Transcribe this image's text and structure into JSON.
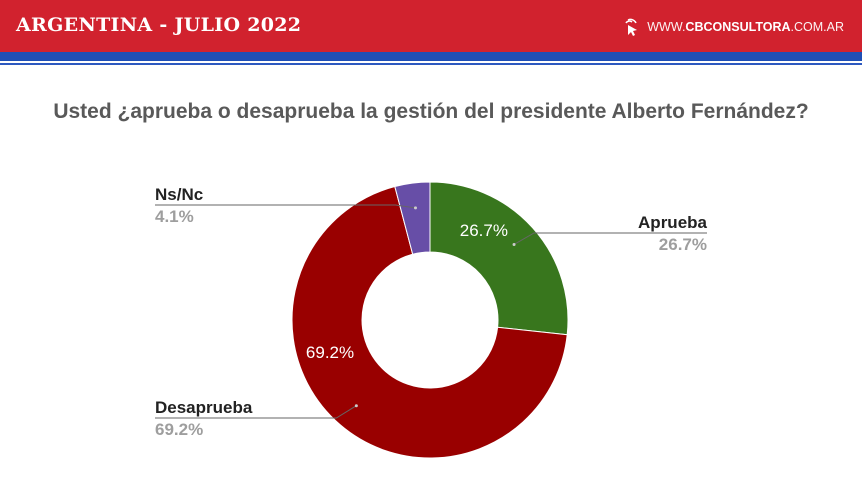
{
  "header": {
    "title": "ARGENTINA - JULIO 2022",
    "brand_prefix": "WWW.",
    "brand_name": "CBCONSULTORA",
    "brand_suffix": ".COM.AR",
    "brand_icon": "cursor-click-icon",
    "colors": {
      "header_bg": "#d1222e",
      "stripe": "#1f4fb5"
    }
  },
  "chart_data": {
    "type": "pie",
    "title": "Usted ¿aprueba o desaprueba la gestión del presidente Alberto Fernández?",
    "slices": [
      {
        "label": "Aprueba",
        "value": 26.7,
        "display": "26.7%",
        "color": "#38761d"
      },
      {
        "label": "Desaprueba",
        "value": 69.2,
        "display": "69.2%",
        "color": "#990000"
      },
      {
        "label": "Ns/Nc",
        "value": 4.1,
        "display": "4.1%",
        "color": "#674ea7"
      }
    ],
    "donut": true,
    "legend": "callout-labels"
  }
}
